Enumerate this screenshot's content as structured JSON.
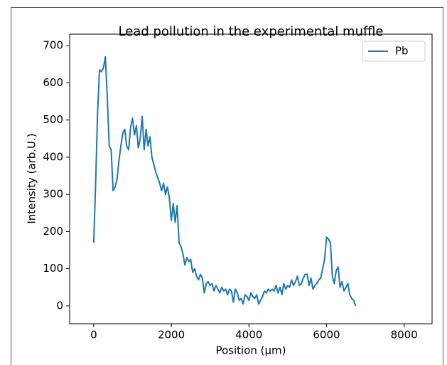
{
  "chart_data": {
    "type": "line",
    "title": "Lead pollution in the experimental muffle",
    "x_label": "Position (µm)",
    "y_label": "Intensity (arb.U.)",
    "x": [
      0,
      50,
      100,
      150,
      200,
      250,
      300,
      350,
      400,
      450,
      500,
      550,
      600,
      650,
      700,
      750,
      800,
      850,
      900,
      950,
      1000,
      1050,
      1100,
      1150,
      1200,
      1250,
      1300,
      1350,
      1400,
      1450,
      1500,
      1550,
      1600,
      1650,
      1700,
      1750,
      1800,
      1850,
      1900,
      1950,
      2000,
      2050,
      2100,
      2150,
      2200,
      2250,
      2300,
      2350,
      2400,
      2450,
      2500,
      2550,
      2600,
      2650,
      2700,
      2750,
      2800,
      2850,
      2900,
      2950,
      3000,
      3050,
      3100,
      3150,
      3200,
      3250,
      3300,
      3350,
      3400,
      3450,
      3500,
      3550,
      3600,
      3650,
      3700,
      3750,
      3800,
      3850,
      3900,
      3950,
      4000,
      4050,
      4100,
      4150,
      4200,
      4250,
      4300,
      4350,
      4400,
      4450,
      4500,
      4550,
      4600,
      4650,
      4700,
      4750,
      4800,
      4850,
      4900,
      4950,
      5000,
      5050,
      5100,
      5150,
      5200,
      5250,
      5300,
      5350,
      5400,
      5450,
      5500,
      5550,
      5600,
      5650,
      5700,
      5750,
      5800,
      5850,
      5900,
      5950,
      6000,
      6050,
      6100,
      6150,
      6200,
      6250,
      6300,
      6350,
      6400,
      6450,
      6500,
      6550,
      6600,
      6650,
      6700,
      6750
    ],
    "series": [
      {
        "name": "Pb",
        "color": "#1f77b4",
        "values": [
          170,
          330,
          520,
          635,
          630,
          640,
          670,
          560,
          430,
          420,
          310,
          320,
          340,
          390,
          430,
          465,
          475,
          430,
          420,
          480,
          505,
          460,
          485,
          425,
          450,
          510,
          420,
          475,
          430,
          455,
          400,
          380,
          360,
          345,
          330,
          310,
          330,
          300,
          320,
          290,
          230,
          275,
          225,
          270,
          170,
          160,
          140,
          110,
          130,
          120,
          125,
          90,
          100,
          80,
          70,
          85,
          75,
          35,
          60,
          65,
          55,
          60,
          40,
          55,
          45,
          35,
          50,
          40,
          45,
          30,
          45,
          40,
          10,
          45,
          35,
          15,
          20,
          5,
          30,
          25,
          15,
          35,
          25,
          20,
          30,
          5,
          15,
          25,
          40,
          35,
          45,
          40,
          45,
          40,
          55,
          35,
          50,
          30,
          60,
          45,
          55,
          50,
          70,
          55,
          65,
          80,
          55,
          60,
          75,
          85,
          85,
          55,
          75,
          45,
          55,
          60,
          70,
          75,
          100,
          125,
          185,
          180,
          170,
          80,
          60,
          95,
          105,
          50,
          65,
          40,
          50,
          60,
          30,
          20,
          15,
          0
        ]
      }
    ],
    "xlim": [
      -620,
      8720
    ],
    "ylim": [
      -48,
      731
    ],
    "xticks": [
      0,
      2000,
      4000,
      6000,
      8000
    ],
    "yticks": [
      0,
      100,
      200,
      300,
      400,
      500,
      600,
      700
    ],
    "legend": "upper right"
  }
}
